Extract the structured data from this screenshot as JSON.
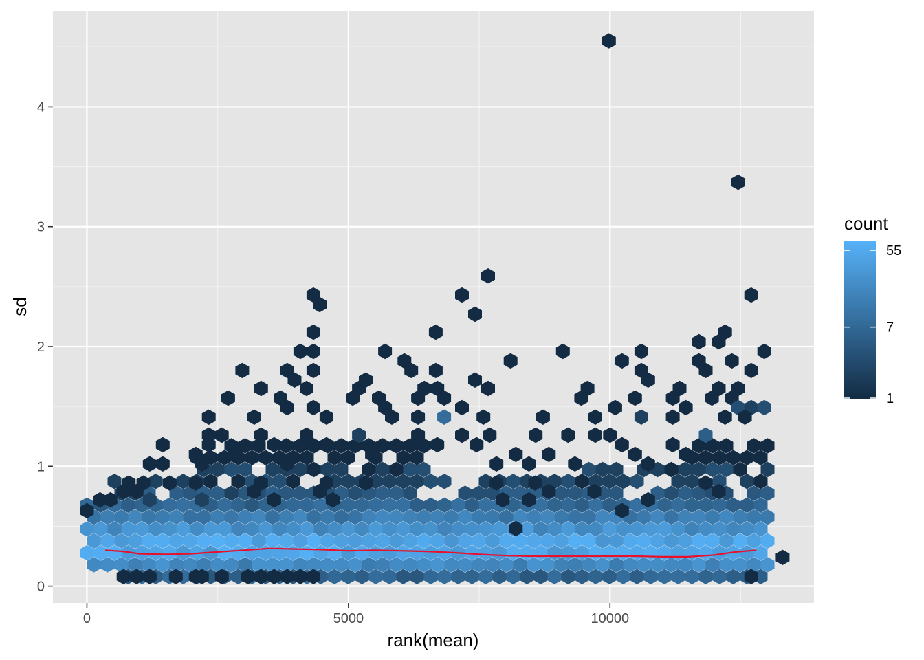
{
  "chart_data": {
    "type": "hexbin",
    "xlabel": "rank(mean)",
    "ylabel": "sd",
    "xlim": [
      -650,
      13900
    ],
    "ylim": [
      -0.14,
      4.8
    ],
    "x_ticks": [
      0,
      5000,
      10000
    ],
    "y_ticks": [
      0,
      1,
      2,
      3,
      4
    ],
    "grid": true,
    "legend": {
      "title": "count",
      "position": "right",
      "scale": "log",
      "range": [
        1,
        70
      ],
      "ticks": [
        1,
        7,
        55
      ],
      "low_color": "#132b43",
      "high_color": "#56b1f7"
    },
    "hex_cells": [
      [
        9980,
        4.55,
        1
      ],
      [
        12450,
        3.37,
        1
      ],
      [
        7670,
        2.59,
        1
      ],
      [
        12700,
        2.43,
        1
      ],
      [
        4330,
        2.43,
        1
      ],
      [
        7170,
        2.43,
        1
      ],
      [
        4450,
        2.35,
        1
      ],
      [
        7420,
        2.27,
        1
      ],
      [
        4330,
        2.12,
        1
      ],
      [
        6670,
        2.12,
        1
      ],
      [
        12200,
        2.12,
        1
      ],
      [
        11700,
        2.04,
        1
      ],
      [
        12080,
        2.04,
        1
      ],
      [
        4080,
        1.96,
        1
      ],
      [
        4330,
        1.96,
        1
      ],
      [
        5700,
        1.96,
        1
      ],
      [
        9100,
        1.96,
        1
      ],
      [
        10600,
        1.96,
        1
      ],
      [
        12950,
        1.96,
        1
      ],
      [
        6070,
        1.88,
        1
      ],
      [
        8100,
        1.88,
        1
      ],
      [
        10230,
        1.88,
        1
      ],
      [
        11700,
        1.88,
        1
      ],
      [
        12330,
        1.88,
        1
      ],
      [
        2970,
        1.8,
        1
      ],
      [
        3830,
        1.8,
        1
      ],
      [
        4330,
        1.8,
        1
      ],
      [
        6200,
        1.8,
        1
      ],
      [
        6670,
        1.8,
        1
      ],
      [
        10600,
        1.8,
        1
      ],
      [
        11830,
        1.8,
        1
      ],
      [
        12700,
        1.8,
        1
      ],
      [
        3970,
        1.72,
        1
      ],
      [
        5330,
        1.72,
        1
      ],
      [
        7420,
        1.72,
        1
      ],
      [
        10730,
        1.72,
        1
      ],
      [
        3330,
        1.65,
        1
      ],
      [
        4200,
        1.65,
        1
      ],
      [
        5200,
        1.65,
        1
      ],
      [
        6450,
        1.65,
        1
      ],
      [
        6700,
        1.65,
        1
      ],
      [
        7670,
        1.65,
        1
      ],
      [
        9570,
        1.65,
        1
      ],
      [
        11330,
        1.65,
        1
      ],
      [
        12080,
        1.65,
        1
      ],
      [
        12450,
        1.65,
        1
      ],
      [
        2700,
        1.57,
        1
      ],
      [
        3700,
        1.57,
        1
      ],
      [
        5080,
        1.57,
        1
      ],
      [
        5580,
        1.57,
        1
      ],
      [
        6330,
        1.57,
        1
      ],
      [
        6830,
        1.57,
        1
      ],
      [
        9450,
        1.57,
        1
      ],
      [
        10480,
        1.57,
        1
      ],
      [
        11200,
        1.57,
        1
      ],
      [
        11950,
        1.57,
        1
      ],
      [
        12330,
        1.57,
        1
      ],
      [
        3830,
        1.49,
        1
      ],
      [
        4330,
        1.49,
        1
      ],
      [
        5700,
        1.49,
        1
      ],
      [
        7170,
        1.49,
        1
      ],
      [
        10100,
        1.49,
        1
      ],
      [
        11450,
        1.49,
        1
      ],
      [
        12450,
        1.49,
        3
      ],
      [
        12700,
        1.49,
        2
      ],
      [
        12950,
        1.49,
        3
      ],
      [
        2330,
        1.41,
        1
      ],
      [
        3200,
        1.41,
        1
      ],
      [
        4580,
        1.41,
        1
      ],
      [
        5830,
        1.41,
        1
      ],
      [
        6330,
        1.41,
        1
      ],
      [
        6830,
        1.41,
        8
      ],
      [
        7580,
        1.41,
        1
      ],
      [
        8720,
        1.41,
        1
      ],
      [
        9720,
        1.41,
        1
      ],
      [
        10600,
        1.41,
        2
      ],
      [
        11200,
        1.41,
        1
      ],
      [
        12200,
        1.41,
        1
      ],
      [
        12580,
        1.41,
        1
      ],
      [
        2330,
        1.26,
        1
      ],
      [
        2580,
        1.26,
        1
      ],
      [
        3330,
        1.26,
        1
      ],
      [
        4200,
        1.26,
        1
      ],
      [
        5200,
        1.26,
        2
      ],
      [
        6330,
        1.26,
        1
      ],
      [
        7170,
        1.26,
        1
      ],
      [
        7700,
        1.26,
        1
      ],
      [
        8580,
        1.26,
        1
      ],
      [
        9200,
        1.26,
        1
      ],
      [
        9720,
        1.26,
        1
      ],
      [
        10000,
        1.26,
        1
      ],
      [
        11830,
        1.26,
        5
      ],
      [
        1450,
        1.18,
        1
      ],
      [
        2330,
        1.18,
        1
      ],
      [
        3580,
        1.18,
        1
      ],
      [
        4580,
        1.18,
        1
      ],
      [
        6700,
        1.18,
        1
      ],
      [
        7450,
        1.18,
        1
      ],
      [
        10230,
        1.18,
        1
      ],
      [
        11200,
        1.18,
        1
      ],
      [
        2080,
        1.1,
        1
      ],
      [
        2830,
        1.1,
        1
      ],
      [
        5450,
        1.1,
        1
      ],
      [
        8200,
        1.1,
        1
      ],
      [
        8830,
        1.1,
        1
      ],
      [
        10480,
        1.1,
        1
      ],
      [
        11450,
        1.1,
        1
      ],
      [
        1200,
        1.02,
        1
      ],
      [
        1450,
        1.02,
        1
      ],
      [
        2200,
        1.02,
        1
      ],
      [
        3830,
        1.02,
        1
      ],
      [
        7830,
        1.02,
        1
      ],
      [
        8450,
        1.02,
        1
      ],
      [
        9330,
        1.02,
        1
      ],
      [
        10730,
        1.02,
        1
      ],
      [
        800,
        0.86,
        1
      ],
      [
        1080,
        0.86,
        1
      ],
      [
        1580,
        0.86,
        1
      ],
      [
        2080,
        0.86,
        1
      ],
      [
        3330,
        0.86,
        1
      ],
      [
        4580,
        0.86,
        1
      ],
      [
        5330,
        0.86,
        1
      ],
      [
        8570,
        0.86,
        1
      ],
      [
        7830,
        0.86,
        1
      ],
      [
        11830,
        0.86,
        1
      ],
      [
        700,
        0.79,
        1
      ],
      [
        950,
        0.79,
        1
      ],
      [
        3200,
        0.79,
        1
      ],
      [
        4450,
        0.79,
        1
      ],
      [
        8830,
        0.79,
        1
      ],
      [
        9700,
        0.79,
        1
      ],
      [
        12080,
        0.79,
        1
      ],
      [
        250,
        0.72,
        1
      ],
      [
        450,
        0.72,
        1
      ],
      [
        1200,
        0.72,
        2
      ],
      [
        2200,
        0.72,
        2
      ],
      [
        3580,
        0.72,
        1
      ],
      [
        4700,
        0.72,
        1
      ],
      [
        7950,
        0.72,
        1
      ],
      [
        8450,
        0.72,
        1
      ],
      [
        10730,
        0.72,
        1
      ],
      [
        0,
        0.63,
        1
      ],
      [
        10230,
        0.63,
        1
      ],
      [
        8200,
        0.48,
        1
      ],
      [
        13300,
        0.24,
        1
      ],
      [
        700,
        0.08,
        1
      ],
      [
        950,
        0.08,
        1
      ],
      [
        1200,
        0.08,
        1
      ],
      [
        1700,
        0.08,
        1
      ],
      [
        2080,
        0.08,
        1
      ],
      [
        2200,
        0.08,
        1
      ],
      [
        2580,
        0.08,
        1
      ],
      [
        3080,
        0.08,
        1
      ],
      [
        3330,
        0.08,
        1
      ],
      [
        3580,
        0.08,
        1
      ],
      [
        3830,
        0.08,
        1
      ],
      [
        4080,
        0.08,
        1
      ],
      [
        4330,
        0.08,
        1
      ],
      [
        12700,
        0.08,
        1
      ]
    ],
    "trend_line": {
      "color": "#e8102a",
      "points": [
        [
          350,
          0.3
        ],
        [
          700,
          0.29
        ],
        [
          1000,
          0.27
        ],
        [
          1500,
          0.265
        ],
        [
          2000,
          0.27
        ],
        [
          2500,
          0.285
        ],
        [
          3000,
          0.3
        ],
        [
          3500,
          0.315
        ],
        [
          4000,
          0.31
        ],
        [
          4500,
          0.305
        ],
        [
          5000,
          0.295
        ],
        [
          5500,
          0.3
        ],
        [
          6000,
          0.295
        ],
        [
          6500,
          0.29
        ],
        [
          7000,
          0.28
        ],
        [
          7500,
          0.265
        ],
        [
          8000,
          0.255
        ],
        [
          8500,
          0.25
        ],
        [
          9000,
          0.25
        ],
        [
          9500,
          0.25
        ],
        [
          10000,
          0.25
        ],
        [
          10500,
          0.25
        ],
        [
          11000,
          0.245
        ],
        [
          11500,
          0.245
        ],
        [
          12000,
          0.26
        ],
        [
          12400,
          0.285
        ],
        [
          12800,
          0.3
        ]
      ]
    }
  }
}
